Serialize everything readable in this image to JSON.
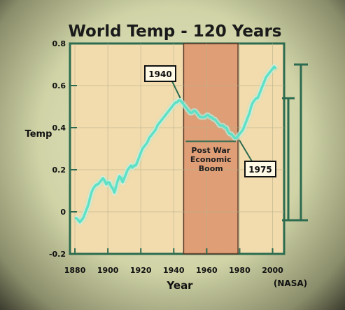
{
  "chart_data": {
    "type": "line",
    "title": "World Temp - 120 Years",
    "xlabel": "Year",
    "ylabel": "Temp",
    "source": "(NASA)",
    "xlim": [
      1877,
      2007
    ],
    "ylim": [
      -0.2,
      0.8
    ],
    "xticks": [
      1880,
      1900,
      1920,
      1940,
      1960,
      1980,
      2000
    ],
    "yticks": [
      -0.2,
      0,
      0.2,
      0.4,
      0.6,
      0.8
    ],
    "ytick_labels": [
      "-0.2",
      "0",
      "0.2",
      "0.4",
      "0.6",
      "0.8"
    ],
    "grid": true,
    "highlight_region": {
      "x_start": 1946,
      "x_end": 1979,
      "label_lines": [
        "Post War",
        "Economic",
        "Boom"
      ]
    },
    "callouts": [
      {
        "label": "1940",
        "x": 1944,
        "y": 0.53
      },
      {
        "label": "1975",
        "x": 1979,
        "y": 0.35
      }
    ],
    "series": [
      {
        "color": "#5fe0c4",
        "x": [
          1880,
          1881,
          1882,
          1883,
          1884,
          1885,
          1886,
          1887,
          1888,
          1889,
          1890,
          1891,
          1892,
          1893,
          1894,
          1895,
          1896,
          1897,
          1898,
          1899,
          1900,
          1901,
          1902,
          1903,
          1904,
          1905,
          1906,
          1907,
          1908,
          1909,
          1910,
          1911,
          1912,
          1913,
          1914,
          1915,
          1916,
          1917,
          1918,
          1919,
          1920,
          1921,
          1922,
          1923,
          1924,
          1925,
          1926,
          1927,
          1928,
          1929,
          1930,
          1931,
          1932,
          1933,
          1934,
          1935,
          1936,
          1937,
          1938,
          1939,
          1940,
          1941,
          1942,
          1943,
          1944,
          1945,
          1946,
          1947,
          1948,
          1949,
          1950,
          1951,
          1952,
          1953,
          1954,
          1955,
          1956,
          1957,
          1958,
          1959,
          1960,
          1961,
          1962,
          1963,
          1964,
          1965,
          1966,
          1967,
          1968,
          1969,
          1970,
          1971,
          1972,
          1973,
          1974,
          1975,
          1976,
          1977,
          1978,
          1979,
          1980,
          1981,
          1982,
          1983,
          1984,
          1985,
          1986,
          1987,
          1988,
          1989,
          1990,
          1991,
          1992,
          1993,
          1994,
          1995,
          1996,
          1997,
          1998,
          1999,
          2000,
          2001,
          2002
        ],
        "values": [
          -0.03,
          -0.03,
          -0.04,
          -0.05,
          -0.04,
          -0.03,
          -0.01,
          0.01,
          0.03,
          0.06,
          0.09,
          0.11,
          0.12,
          0.13,
          0.13,
          0.14,
          0.15,
          0.16,
          0.15,
          0.13,
          0.14,
          0.14,
          0.12,
          0.11,
          0.09,
          0.12,
          0.15,
          0.17,
          0.16,
          0.14,
          0.16,
          0.18,
          0.2,
          0.21,
          0.22,
          0.21,
          0.22,
          0.22,
          0.24,
          0.26,
          0.28,
          0.3,
          0.31,
          0.32,
          0.33,
          0.35,
          0.36,
          0.37,
          0.38,
          0.39,
          0.41,
          0.42,
          0.43,
          0.44,
          0.45,
          0.46,
          0.47,
          0.48,
          0.49,
          0.5,
          0.51,
          0.52,
          0.52,
          0.53,
          0.53,
          0.52,
          0.51,
          0.5,
          0.49,
          0.48,
          0.47,
          0.47,
          0.48,
          0.48,
          0.47,
          0.46,
          0.45,
          0.45,
          0.45,
          0.45,
          0.46,
          0.46,
          0.45,
          0.45,
          0.44,
          0.44,
          0.43,
          0.42,
          0.41,
          0.41,
          0.41,
          0.4,
          0.4,
          0.38,
          0.37,
          0.37,
          0.36,
          0.35,
          0.35,
          0.36,
          0.37,
          0.38,
          0.39,
          0.41,
          0.43,
          0.45,
          0.47,
          0.5,
          0.52,
          0.53,
          0.54,
          0.54,
          0.56,
          0.58,
          0.6,
          0.62,
          0.64,
          0.65,
          0.66,
          0.67,
          0.68,
          0.69,
          0.68
        ]
      }
    ]
  }
}
